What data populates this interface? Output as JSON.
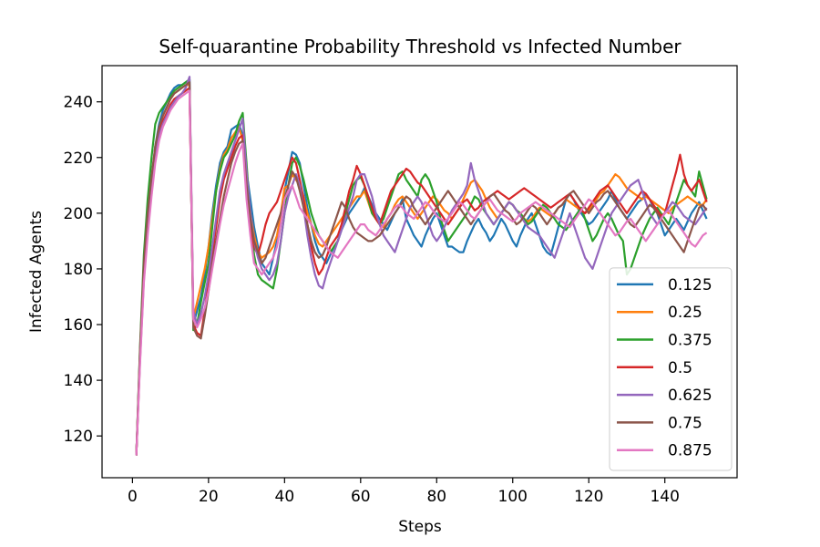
{
  "chart_data": {
    "type": "line",
    "title": "Self-quarantine Probability Threshold vs Infected Number",
    "xlabel": "Steps",
    "ylabel": "Infected Agents",
    "xlim": [
      -8,
      159
    ],
    "ylim": [
      105,
      253
    ],
    "xticks": [
      0,
      20,
      40,
      60,
      80,
      100,
      120,
      140
    ],
    "yticks": [
      120,
      140,
      160,
      180,
      200,
      220,
      240
    ],
    "legend_position": "lower-right",
    "grid": false,
    "series": [
      {
        "name": "0.125",
        "color": "#1f77b4",
        "values": [
          113,
          150,
          180,
          198,
          212,
          224,
          232,
          237,
          240,
          243,
          245,
          246,
          246,
          247,
          248,
          160,
          165,
          170,
          178,
          188,
          200,
          210,
          218,
          222,
          224,
          230,
          231,
          232,
          228,
          215,
          205,
          195,
          188,
          182,
          180,
          178,
          184,
          190,
          198,
          208,
          215,
          222,
          221,
          218,
          210,
          202,
          196,
          190,
          186,
          184,
          182,
          185,
          188,
          190,
          194,
          197,
          200,
          202,
          204,
          206,
          209,
          206,
          203,
          200,
          198,
          196,
          194,
          197,
          200,
          202,
          205,
          198,
          195,
          192,
          190,
          188,
          192,
          195,
          198,
          200,
          196,
          192,
          188,
          188,
          187,
          186,
          186,
          190,
          193,
          196,
          198,
          195,
          193,
          190,
          192,
          195,
          198,
          196,
          193,
          190,
          188,
          192,
          195,
          198,
          200,
          196,
          192,
          188,
          186,
          185,
          190,
          195,
          200,
          205,
          207,
          205,
          202,
          200,
          198,
          196,
          197,
          199,
          201,
          203,
          205,
          208,
          205,
          202,
          200,
          198,
          200,
          202,
          204,
          205,
          207,
          205,
          202,
          200,
          196,
          192,
          194,
          196,
          198,
          196,
          194,
          197,
          200,
          202,
          204,
          201,
          198
        ]
      },
      {
        "name": "0.25",
        "color": "#ff7f0e",
        "values": [
          113,
          148,
          178,
          196,
          210,
          222,
          230,
          235,
          238,
          241,
          243,
          244,
          245,
          246,
          246,
          162,
          168,
          174,
          180,
          188,
          198,
          208,
          216,
          221,
          223,
          227,
          229,
          231,
          226,
          212,
          200,
          192,
          186,
          184,
          185,
          186,
          188,
          192,
          200,
          209,
          210,
          214,
          212,
          210,
          206,
          200,
          196,
          192,
          189,
          188,
          190,
          192,
          194,
          196,
          198,
          200,
          202,
          204,
          206,
          206,
          208,
          204,
          200,
          198,
          196,
          195,
          198,
          200,
          203,
          205,
          206,
          204,
          202,
          200,
          198,
          200,
          202,
          204,
          206,
          205,
          203,
          201,
          200,
          198,
          200,
          202,
          205,
          208,
          211,
          212,
          210,
          208,
          205,
          202,
          200,
          198,
          200,
          202,
          204,
          203,
          201,
          200,
          198,
          197,
          198,
          200,
          202,
          201,
          200,
          199,
          200,
          202,
          203,
          205,
          204,
          203,
          202,
          201,
          200,
          201,
          203,
          205,
          207,
          208,
          210,
          212,
          214,
          213,
          211,
          209,
          208,
          207,
          206,
          205,
          206,
          205,
          204,
          203,
          202,
          201,
          200,
          202,
          203,
          204,
          205,
          206,
          205,
          204,
          203,
          203,
          205
        ]
      },
      {
        "name": "0.375",
        "color": "#2ca02c",
        "values": [
          113,
          152,
          185,
          205,
          220,
          232,
          236,
          238,
          240,
          242,
          244,
          245,
          246,
          247,
          248,
          158,
          160,
          168,
          175,
          182,
          195,
          208,
          215,
          220,
          222,
          225,
          228,
          233,
          236,
          218,
          198,
          185,
          178,
          176,
          175,
          174,
          173,
          180,
          190,
          200,
          210,
          218,
          220,
          217,
          212,
          206,
          200,
          196,
          192,
          190,
          188,
          186,
          188,
          190,
          195,
          200,
          205,
          210,
          212,
          213,
          210,
          205,
          200,
          198,
          196,
          198,
          202,
          206,
          210,
          214,
          215,
          212,
          210,
          208,
          206,
          212,
          214,
          212,
          208,
          204,
          198,
          194,
          190,
          192,
          194,
          196,
          198,
          200,
          203,
          206,
          205,
          202,
          200,
          198,
          196,
          198,
          200,
          202,
          204,
          203,
          201,
          200,
          198,
          196,
          197,
          199,
          201,
          203,
          202,
          200,
          198,
          196,
          195,
          194,
          196,
          198,
          200,
          202,
          198,
          194,
          190,
          192,
          195,
          198,
          200,
          198,
          195,
          192,
          190,
          178,
          180,
          184,
          188,
          192,
          195,
          198,
          200,
          202,
          200,
          198,
          196,
          200,
          204,
          208,
          212,
          210,
          208,
          206,
          215,
          210,
          205
        ]
      },
      {
        "name": "0.5",
        "color": "#d62728",
        "values": [
          113,
          149,
          179,
          197,
          211,
          223,
          229,
          233,
          236,
          239,
          241,
          242,
          243,
          244,
          245,
          160,
          157,
          156,
          165,
          175,
          185,
          195,
          205,
          212,
          216,
          220,
          224,
          227,
          228,
          210,
          195,
          188,
          185,
          190,
          196,
          200,
          202,
          204,
          208,
          212,
          216,
          220,
          218,
          212,
          205,
          196,
          188,
          182,
          178,
          180,
          184,
          188,
          190,
          192,
          196,
          202,
          208,
          212,
          217,
          214,
          210,
          206,
          202,
          198,
          196,
          200,
          204,
          208,
          210,
          212,
          214,
          216,
          215,
          213,
          211,
          210,
          208,
          206,
          204,
          202,
          200,
          198,
          196,
          198,
          200,
          202,
          204,
          205,
          203,
          201,
          202,
          204,
          205,
          206,
          207,
          208,
          207,
          206,
          205,
          206,
          207,
          208,
          209,
          208,
          207,
          206,
          205,
          204,
          203,
          202,
          203,
          204,
          205,
          206,
          207,
          205,
          203,
          201,
          200,
          202,
          204,
          206,
          208,
          209,
          210,
          208,
          206,
          204,
          202,
          200,
          202,
          204,
          206,
          208,
          207,
          205,
          203,
          201,
          199,
          200,
          205,
          210,
          215,
          221,
          214,
          210,
          208,
          210,
          212,
          208,
          204
        ]
      },
      {
        "name": "0.625",
        "color": "#9467bd",
        "values": [
          113,
          147,
          176,
          194,
          208,
          220,
          228,
          232,
          235,
          238,
          240,
          242,
          243,
          245,
          249,
          165,
          160,
          164,
          170,
          178,
          188,
          198,
          208,
          214,
          218,
          222,
          226,
          230,
          234,
          215,
          200,
          190,
          184,
          180,
          178,
          176,
          178,
          182,
          190,
          200,
          206,
          210,
          214,
          210,
          202,
          192,
          184,
          178,
          174,
          173,
          178,
          182,
          186,
          190,
          194,
          198,
          202,
          206,
          212,
          214,
          214,
          210,
          206,
          200,
          196,
          192,
          190,
          188,
          186,
          190,
          194,
          198,
          202,
          204,
          206,
          204,
          200,
          196,
          192,
          190,
          192,
          195,
          198,
          201,
          203,
          205,
          207,
          210,
          218,
          212,
          208,
          204,
          200,
          198,
          196,
          198,
          200,
          202,
          204,
          203,
          201,
          199,
          197,
          195,
          194,
          193,
          192,
          190,
          188,
          186,
          184,
          188,
          192,
          196,
          200,
          196,
          192,
          188,
          184,
          182,
          180,
          184,
          188,
          192,
          196,
          200,
          202,
          204,
          206,
          208,
          210,
          211,
          212,
          208,
          204,
          200,
          198,
          196,
          198,
          200,
          202,
          204,
          203,
          201,
          199,
          198,
          197,
          196,
          198,
          200,
          202
        ]
      },
      {
        "name": "0.75",
        "color": "#8c564b",
        "values": [
          113,
          151,
          182,
          200,
          213,
          224,
          231,
          235,
          238,
          241,
          243,
          244,
          245,
          246,
          247,
          159,
          156,
          155,
          163,
          172,
          182,
          190,
          198,
          206,
          212,
          218,
          222,
          225,
          226,
          210,
          198,
          190,
          186,
          182,
          184,
          188,
          192,
          196,
          200,
          205,
          210,
          215,
          213,
          208,
          202,
          196,
          190,
          186,
          184,
          185,
          188,
          192,
          196,
          200,
          204,
          202,
          198,
          195,
          193,
          192,
          191,
          190,
          190,
          191,
          192,
          194,
          196,
          198,
          200,
          202,
          204,
          206,
          205,
          202,
          200,
          198,
          196,
          198,
          200,
          202,
          204,
          206,
          208,
          206,
          204,
          202,
          200,
          198,
          196,
          198,
          200,
          202,
          204,
          206,
          207,
          205,
          203,
          201,
          200,
          198,
          196,
          197,
          199,
          201,
          203,
          202,
          200,
          198,
          196,
          198,
          200,
          202,
          203,
          205,
          207,
          208,
          206,
          204,
          202,
          200,
          202,
          204,
          205,
          207,
          208,
          206,
          204,
          202,
          200,
          198,
          196,
          195,
          197,
          199,
          201,
          203,
          202,
          200,
          198,
          196,
          194,
          192,
          190,
          188,
          186,
          190,
          194,
          198,
          202,
          203,
          201
        ]
      },
      {
        "name": "0.875",
        "color": "#e377c2",
        "values": [
          113,
          146,
          175,
          192,
          206,
          218,
          226,
          231,
          234,
          237,
          239,
          241,
          242,
          243,
          244,
          162,
          159,
          162,
          166,
          172,
          180,
          188,
          196,
          203,
          208,
          213,
          218,
          222,
          225,
          205,
          192,
          182,
          180,
          178,
          180,
          182,
          184,
          188,
          196,
          205,
          208,
          210,
          206,
          202,
          200,
          198,
          196,
          194,
          192,
          190,
          188,
          186,
          185,
          184,
          186,
          188,
          190,
          192,
          194,
          196,
          196,
          194,
          193,
          192,
          194,
          196,
          198,
          200,
          202,
          203,
          202,
          200,
          199,
          198,
          200,
          202,
          204,
          203,
          201,
          199,
          198,
          197,
          198,
          200,
          202,
          204,
          203,
          201,
          199,
          198,
          200,
          202,
          204,
          205,
          203,
          201,
          200,
          199,
          198,
          197,
          198,
          200,
          201,
          202,
          203,
          204,
          203,
          202,
          201,
          200,
          199,
          198,
          197,
          196,
          195,
          197,
          199,
          201,
          203,
          205,
          204,
          202,
          200,
          198,
          196,
          194,
          192,
          193,
          195,
          197,
          198,
          196,
          194,
          192,
          190,
          192,
          194,
          196,
          198,
          200,
          201,
          199,
          197,
          195,
          193,
          191,
          189,
          188,
          190,
          192,
          193
        ]
      }
    ],
    "x_start": 1,
    "x_step": 1
  }
}
